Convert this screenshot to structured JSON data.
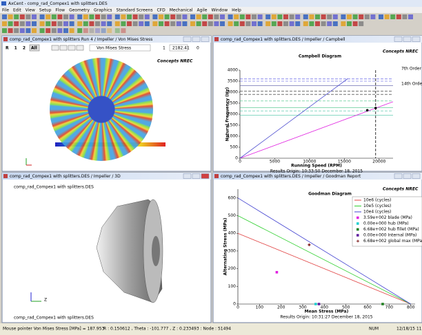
{
  "window": {
    "title": "AxCent - comp_rad_Compex1 with splitters.DES",
    "menu": [
      "File",
      "Edit",
      "View",
      "Setup",
      "Flow",
      "Geometry",
      "Graphics",
      "Standard Screens",
      "CFD",
      "Mechanical",
      "Agile",
      "Window",
      "Help"
    ],
    "status": [
      "Mouse pointer Von Mises Stress [MPa] = 187.953",
      "R : 0.150612 , Theta : -101.777 , Z : 0.233493  :  Node : 51494",
      "NUM",
      "12/18/15 11"
    ]
  },
  "panes": [
    {
      "title": "comp_rad_Compex1 with splitters Run 4 / Impeller / Von Mises Stress",
      "toolbar": [
        "R",
        "1",
        "2",
        "All"
      ],
      "dropdown": "Von Mises Stress",
      "step": "1",
      "value": "2182.41",
      "end": "0",
      "logo": "Concepts NREC"
    },
    {
      "title": "comp_rad_Compex1 with splitters.DES / Impeller / Campbell",
      "logo": "Concepts NREC",
      "footer": "Results Origin: 10:33:50 December 18, 2015"
    },
    {
      "title": "comp_rad_Compex1 with splitters.DES / Impeller / 3D",
      "caption": "comp_rad_Compex1 with splitters.DES",
      "footer": "comp_rad_Compex1 with splitters.DES",
      "axis_label": "Z"
    },
    {
      "title": "comp_rad_Compex1 with splitters.DES / Impeller / Goodman Report",
      "logo": "Concepts NREC",
      "footer": "Results Origin: 10:31:27 December 18, 2015"
    }
  ],
  "chart_data": [
    {
      "type": "line",
      "title": "Campbell Diagram",
      "x_label": "Running Speed (RPM)",
      "y_label": "Natural Frequency (Hz)",
      "xlim": [
        0,
        22000
      ],
      "ylim": [
        0,
        4000
      ],
      "xticks": [
        0,
        5000,
        10000,
        15000,
        20000
      ],
      "yticks": [
        0,
        500,
        1000,
        1500,
        2000,
        2500,
        3000,
        3500,
        4000
      ],
      "series": [
        {
          "name": "7th Order",
          "color": "#e020e0",
          "x": [
            0,
            22000
          ],
          "values": [
            0,
            2567
          ]
        },
        {
          "name": "14th Order",
          "color": "#5050d0",
          "x": [
            0,
            15500
          ],
          "values": [
            0,
            3617
          ]
        }
      ],
      "reference_lines": [
        {
          "value": 3600,
          "color": "#4040e0",
          "style": "dashed"
        },
        {
          "value": 3500,
          "color": "#4040e0",
          "style": "dashed"
        },
        {
          "value": 3300,
          "color": "#5050a0",
          "style": "solid"
        },
        {
          "value": 3050,
          "color": "#202020",
          "style": "dashed"
        },
        {
          "value": 2900,
          "color": "#202020",
          "style": "dashed"
        },
        {
          "value": 2600,
          "color": "#40c080",
          "style": "dashed"
        },
        {
          "value": 2300,
          "color": "#40c080",
          "style": "solid"
        },
        {
          "value": 2150,
          "color": "#40c0a0",
          "style": "dashed"
        },
        {
          "value": 1950,
          "color": "#40c0a0",
          "style": "solid"
        }
      ],
      "max_speed": 19500,
      "crossings": {
        "x": [
          18300,
          19500
        ],
        "values": [
          2180,
          2280
        ]
      }
    },
    {
      "type": "line",
      "title": "Goodman Diagram",
      "x_label": "Mean Stress (MPa)",
      "y_label": "Alternating Stress (MPa)",
      "xlim": [
        0,
        820
      ],
      "ylim": [
        0,
        650
      ],
      "xticks": [
        0,
        100,
        200,
        300,
        400,
        500,
        600,
        700,
        800
      ],
      "yticks": [
        0,
        100,
        200,
        300,
        400,
        500,
        600
      ],
      "series": [
        {
          "name": "10e6 (cycles)",
          "color": "#e04040",
          "marker": "line",
          "x": [
            0,
            800
          ],
          "values": [
            400,
            0
          ]
        },
        {
          "name": "10e5 (cycles)",
          "color": "#30d030",
          "marker": "line",
          "x": [
            0,
            800
          ],
          "values": [
            500,
            0
          ]
        },
        {
          "name": "10e4 (cycles)",
          "color": "#4040d0",
          "marker": "line",
          "x": [
            0,
            800
          ],
          "values": [
            600,
            0
          ]
        },
        {
          "name": "3.59e+002 blade (MPa)",
          "color": "#e020e0",
          "marker": "square",
          "x": [
            180
          ],
          "values": [
            180
          ]
        },
        {
          "name": "0.00e+000 hub (MPa)",
          "color": "#20d0d0",
          "marker": "square",
          "x": [
            360
          ],
          "values": [
            0
          ]
        },
        {
          "name": "6.68e+002 hub fillet (MPa)",
          "color": "#208020",
          "marker": "square",
          "x": [
            670
          ],
          "values": [
            0
          ]
        },
        {
          "name": "0.00e+000 Internal (MPa)",
          "color": "#6020a0",
          "marker": "square",
          "x": [
            375
          ],
          "values": [
            0
          ]
        },
        {
          "name": "6.68e+002 global max (MPa)",
          "color": "#802020",
          "marker": "plus",
          "x": [
            330
          ],
          "values": [
            335
          ]
        }
      ]
    }
  ]
}
